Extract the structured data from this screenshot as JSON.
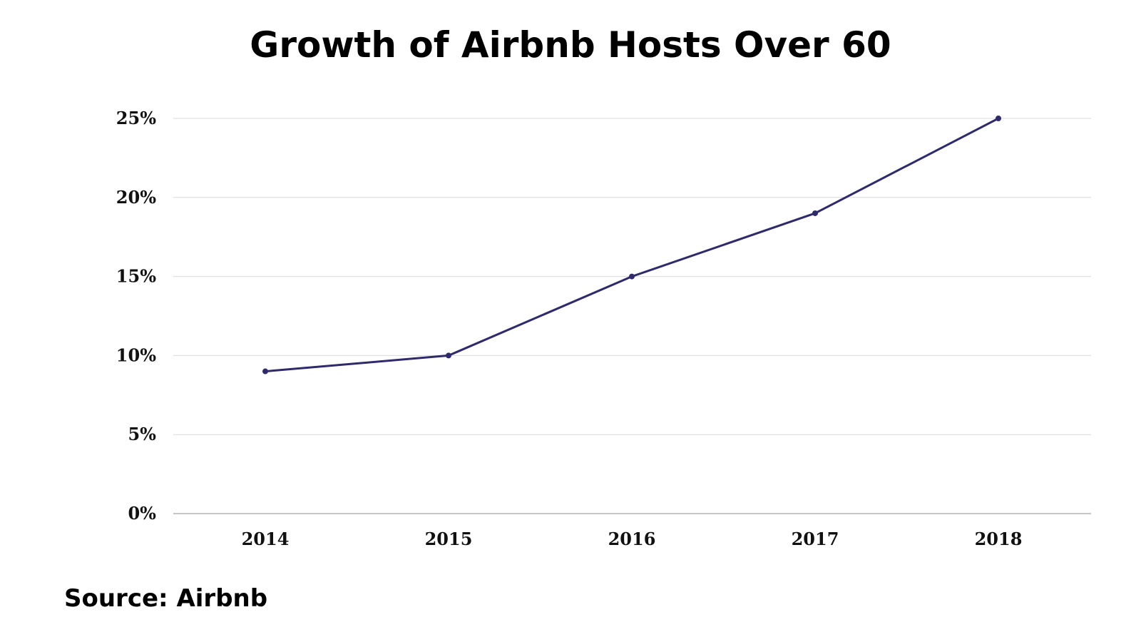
{
  "chart_data": {
    "type": "line",
    "title": "Growth of Airbnb Hosts Over 60",
    "categories": [
      "2014",
      "2015",
      "2016",
      "2017",
      "2018"
    ],
    "series": [
      {
        "values": [
          9,
          10,
          15,
          19,
          25
        ]
      }
    ],
    "y_ticks": [
      "0%",
      "5%",
      "10%",
      "15%",
      "20%",
      "25%"
    ],
    "ylim": [
      0,
      25
    ],
    "y_unit": "%",
    "grid": true,
    "legend": "none",
    "colors": {
      "line": "#2e2a6b",
      "grid": "#d9d9d9",
      "axis": "#b3b3b3"
    }
  },
  "source": "Source: Airbnb"
}
